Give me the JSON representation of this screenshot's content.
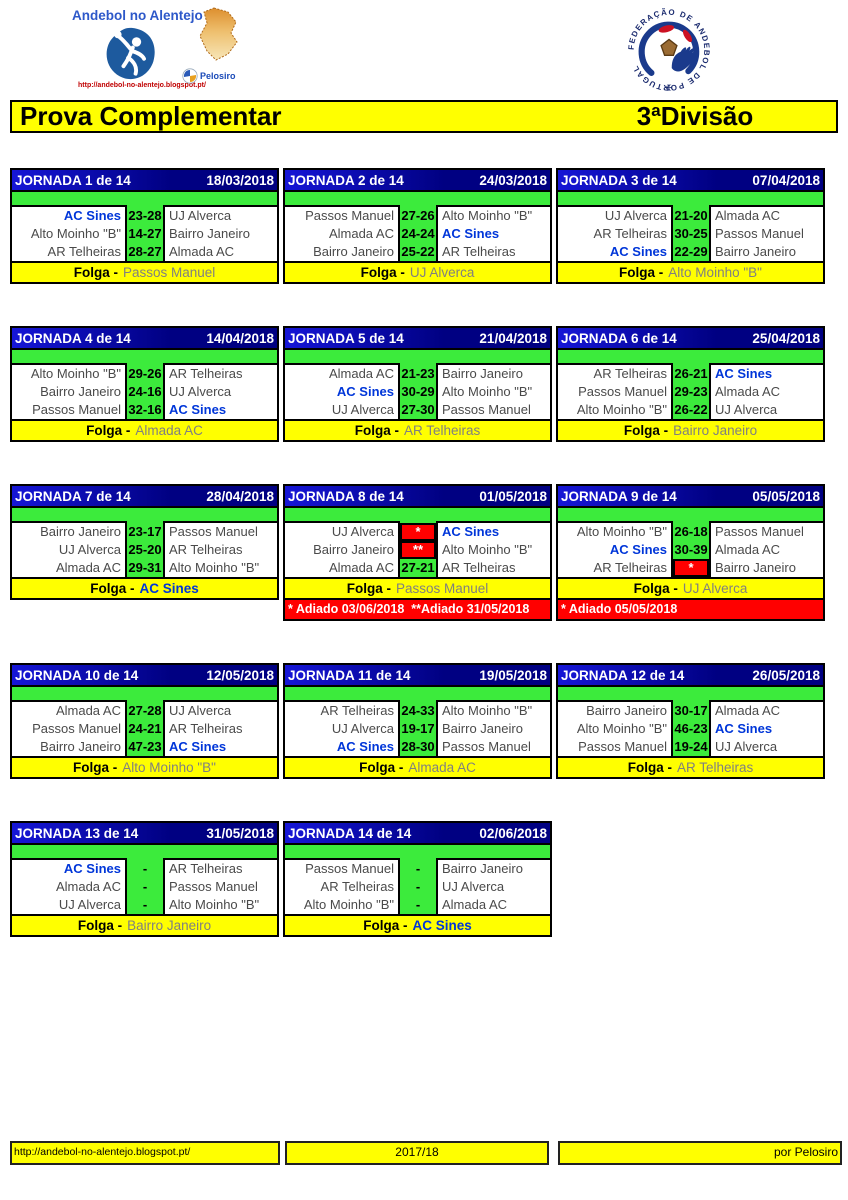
{
  "header": {
    "brand": {
      "title": "Andebol no Alentejo",
      "url": "http://andebol-no-alentejo.blogspot.pt/",
      "pelosiro": "Pelosiro"
    },
    "title_left": "Prova Complementar",
    "title_right": "3ªDivisão"
  },
  "labels": {
    "folga": "Folga -"
  },
  "highlight_team": "AC Sines",
  "colors": {
    "header_blue": "#000082",
    "green": "#3ceb3c",
    "yellow": "#ffff00",
    "red": "#ff0000",
    "highlight_blue": "#0036d9",
    "team_gray": "#4a4a4a"
  },
  "jornadas": [
    {
      "title": "JORNADA 1 de 14",
      "date": "18/03/2018",
      "matches": [
        {
          "home": "AC Sines",
          "score": "23-28",
          "away": "UJ Alverca"
        },
        {
          "home": "Alto Moinho \"B\"",
          "score": "14-27",
          "away": "Bairro Janeiro"
        },
        {
          "home": "AR Telheiras",
          "score": "28-27",
          "away": "Almada AC"
        }
      ],
      "folga": "Passos Manuel",
      "note": null
    },
    {
      "title": "JORNADA 2 de 14",
      "date": "24/03/2018",
      "matches": [
        {
          "home": "Passos Manuel",
          "score": "27-26",
          "away": "Alto Moinho \"B\""
        },
        {
          "home": "Almada AC",
          "score": "24-24",
          "away": "AC Sines"
        },
        {
          "home": "Bairro Janeiro",
          "score": "25-22",
          "away": "AR Telheiras"
        }
      ],
      "folga": "UJ Alverca",
      "note": null
    },
    {
      "title": "JORNADA 3 de 14",
      "date": "07/04/2018",
      "matches": [
        {
          "home": "UJ Alverca",
          "score": "21-20",
          "away": "Almada AC"
        },
        {
          "home": "AR Telheiras",
          "score": "30-25",
          "away": "Passos Manuel"
        },
        {
          "home": "AC Sines",
          "score": "22-29",
          "away": "Bairro Janeiro"
        }
      ],
      "folga": "Alto Moinho \"B\"",
      "note": null
    },
    {
      "title": "JORNADA 4 de 14",
      "date": "14/04/2018",
      "matches": [
        {
          "home": "Alto Moinho \"B\"",
          "score": "29-26",
          "away": "AR Telheiras"
        },
        {
          "home": "Bairro Janeiro",
          "score": "24-16",
          "away": "UJ Alverca"
        },
        {
          "home": "Passos Manuel",
          "score": "32-16",
          "away": "AC Sines"
        }
      ],
      "folga": "Almada AC",
      "note": null
    },
    {
      "title": "JORNADA 5 de 14",
      "date": "21/04/2018",
      "matches": [
        {
          "home": "Almada AC",
          "score": "21-23",
          "away": "Bairro Janeiro"
        },
        {
          "home": "AC Sines",
          "score": "30-29",
          "away": "Alto Moinho \"B\""
        },
        {
          "home": "UJ Alverca",
          "score": "27-30",
          "away": "Passos Manuel"
        }
      ],
      "folga": "AR Telheiras",
      "note": null
    },
    {
      "title": "JORNADA 6 de 14",
      "date": "25/04/2018",
      "matches": [
        {
          "home": "AR Telheiras",
          "score": "26-21",
          "away": "AC Sines"
        },
        {
          "home": "Passos Manuel",
          "score": "29-23",
          "away": "Almada AC"
        },
        {
          "home": "Alto Moinho \"B\"",
          "score": "26-22",
          "away": "UJ Alverca"
        }
      ],
      "folga": "Bairro Janeiro",
      "note": null
    },
    {
      "title": "JORNADA 7 de 14",
      "date": "28/04/2018",
      "matches": [
        {
          "home": "Bairro Janeiro",
          "score": "23-17",
          "away": "Passos Manuel"
        },
        {
          "home": "UJ Alverca",
          "score": "25-20",
          "away": "AR Telheiras"
        },
        {
          "home": "Almada AC",
          "score": "29-31",
          "away": "Alto Moinho \"B\""
        }
      ],
      "folga": "AC Sines",
      "note": null
    },
    {
      "title": "JORNADA 8 de 14",
      "date": "01/05/2018",
      "matches": [
        {
          "home": "UJ Alverca",
          "score": "*",
          "away": "AC Sines"
        },
        {
          "home": "Bairro Janeiro",
          "score": "**",
          "away": "Alto Moinho \"B\""
        },
        {
          "home": "Almada AC",
          "score": "27-21",
          "away": "AR Telheiras"
        }
      ],
      "folga": "Passos Manuel",
      "note": "* Adiado 03/06/2018  **Adiado 31/05/2018"
    },
    {
      "title": "JORNADA 9 de 14",
      "date": "05/05/2018",
      "matches": [
        {
          "home": "Alto Moinho \"B\"",
          "score": "26-18",
          "away": "Passos Manuel"
        },
        {
          "home": "AC Sines",
          "score": "30-39",
          "away": "Almada AC"
        },
        {
          "home": "AR Telheiras",
          "score": "*",
          "away": "Bairro Janeiro"
        }
      ],
      "folga": "UJ Alverca",
      "note": "* Adiado 05/05/2018"
    },
    {
      "title": "JORNADA 10 de 14",
      "date": "12/05/2018",
      "matches": [
        {
          "home": "Almada AC",
          "score": "27-28",
          "away": "UJ Alverca"
        },
        {
          "home": "Passos Manuel",
          "score": "24-21",
          "away": "AR Telheiras"
        },
        {
          "home": "Bairro Janeiro",
          "score": "47-23",
          "away": "AC Sines"
        }
      ],
      "folga": "Alto Moinho \"B\"",
      "note": null
    },
    {
      "title": "JORNADA 11 de 14",
      "date": "19/05/2018",
      "matches": [
        {
          "home": "AR Telheiras",
          "score": "24-33",
          "away": "Alto Moinho \"B\""
        },
        {
          "home": "UJ Alverca",
          "score": "19-17",
          "away": "Bairro Janeiro"
        },
        {
          "home": "AC Sines",
          "score": "28-30",
          "away": "Passos Manuel"
        }
      ],
      "folga": "Almada AC",
      "note": null
    },
    {
      "title": "JORNADA 12 de 14",
      "date": "26/05/2018",
      "matches": [
        {
          "home": "Bairro Janeiro",
          "score": "30-17",
          "away": "Almada AC"
        },
        {
          "home": "Alto Moinho \"B\"",
          "score": "46-23",
          "away": "AC Sines"
        },
        {
          "home": "Passos Manuel",
          "score": "19-24",
          "away": "UJ Alverca"
        }
      ],
      "folga": "AR Telheiras",
      "note": null
    },
    {
      "title": "JORNADA 13 de 14",
      "date": "31/05/2018",
      "matches": [
        {
          "home": "AC Sines",
          "score": "-",
          "away": "AR Telheiras"
        },
        {
          "home": "Almada AC",
          "score": "-",
          "away": "Passos Manuel"
        },
        {
          "home": "UJ Alverca",
          "score": "-",
          "away": "Alto Moinho \"B\""
        }
      ],
      "folga": "Bairro Janeiro",
      "note": null
    },
    {
      "title": "JORNADA 14 de 14",
      "date": "02/06/2018",
      "matches": [
        {
          "home": "Passos Manuel",
          "score": "-",
          "away": "Bairro Janeiro"
        },
        {
          "home": "AR Telheiras",
          "score": "-",
          "away": "UJ Alverca"
        },
        {
          "home": "Alto Moinho \"B\"",
          "score": "-",
          "away": "Almada AC"
        }
      ],
      "folga": "AC Sines",
      "note": null
    }
  ],
  "footer": {
    "left": "http://andebol-no-alentejo.blogspot.pt/",
    "center": "2017/18",
    "right": "por Pelosiro"
  }
}
